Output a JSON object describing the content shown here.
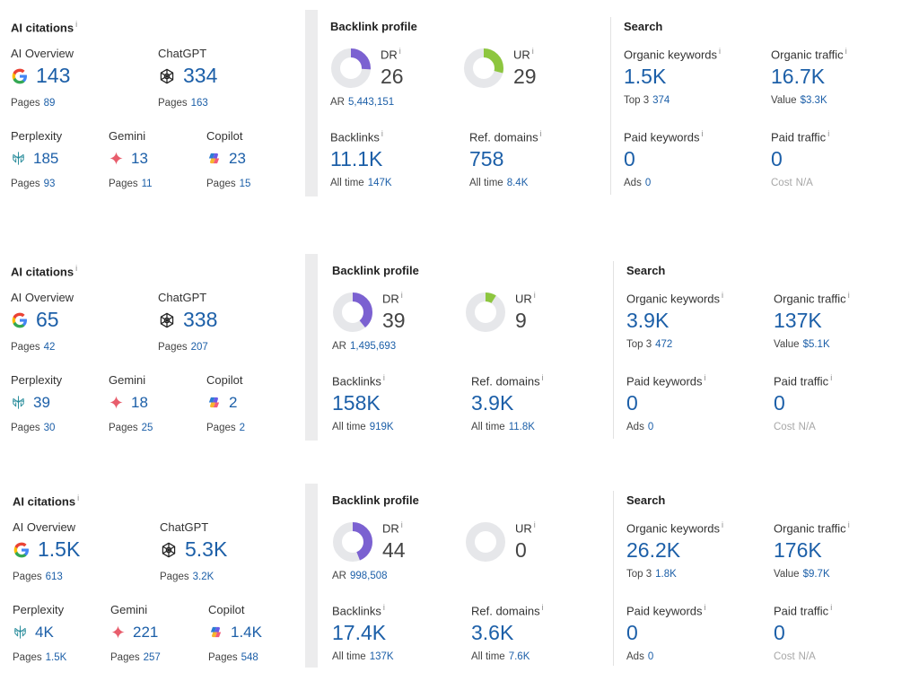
{
  "labels": {
    "ai_citations": "AI citations",
    "ai_overview": "AI Overview",
    "chatgpt": "ChatGPT",
    "perplexity": "Perplexity",
    "gemini": "Gemini",
    "copilot": "Copilot",
    "pages": "Pages",
    "backlink_profile": "Backlink profile",
    "dr": "DR",
    "ur": "UR",
    "ar": "AR",
    "backlinks": "Backlinks",
    "ref_domains": "Ref. domains",
    "all_time": "All time",
    "search": "Search",
    "organic_keywords": "Organic keywords",
    "organic_traffic": "Organic traffic",
    "top3": "Top 3",
    "value": "Value",
    "paid_keywords": "Paid keywords",
    "paid_traffic": "Paid traffic",
    "ads": "Ads",
    "cost": "Cost",
    "info_mark": "i"
  },
  "colors": {
    "accent_blue": "#1c5fa8",
    "dr_purple": "#7b61d1",
    "ur_green": "#8dc63f",
    "donut_track": "#e6e7ea",
    "gemini_red": "#e85d6c",
    "perplexity_teal": "#2a8d9c"
  },
  "icons": {
    "ai_overview": "google-icon",
    "chatgpt": "chatgpt-icon",
    "perplexity": "perplexity-icon",
    "gemini": "gemini-icon",
    "copilot": "copilot-icon",
    "info": "info-icon"
  },
  "rows": [
    {
      "ai": {
        "ai_overview": "143",
        "ai_overview_pages": "89",
        "chatgpt": "334",
        "chatgpt_pages": "163",
        "perplexity": "185",
        "perplexity_pages": "93",
        "gemini": "13",
        "gemini_pages": "11",
        "copilot": "23",
        "copilot_pages": "15"
      },
      "backlink": {
        "dr": "26",
        "dr_fraction": 0.26,
        "ur": "29",
        "ur_fraction": 0.29,
        "ar": "5,443,151",
        "backlinks": "11.1K",
        "backlinks_all_time": "147K",
        "ref_domains": "758",
        "ref_domains_all_time": "8.4K"
      },
      "search": {
        "organic_keywords": "1.5K",
        "top3": "374",
        "organic_traffic": "16.7K",
        "value": "$3.3K",
        "paid_keywords": "0",
        "ads": "0",
        "paid_traffic": "0",
        "cost": "N/A"
      }
    },
    {
      "ai": {
        "ai_overview": "65",
        "ai_overview_pages": "42",
        "chatgpt": "338",
        "chatgpt_pages": "207",
        "perplexity": "39",
        "perplexity_pages": "30",
        "gemini": "18",
        "gemini_pages": "25",
        "copilot": "2",
        "copilot_pages": "2"
      },
      "backlink": {
        "dr": "39",
        "dr_fraction": 0.39,
        "ur": "9",
        "ur_fraction": 0.09,
        "ar": "1,495,693",
        "backlinks": "158K",
        "backlinks_all_time": "919K",
        "ref_domains": "3.9K",
        "ref_domains_all_time": "11.8K"
      },
      "search": {
        "organic_keywords": "3.9K",
        "top3": "472",
        "organic_traffic": "137K",
        "value": "$5.1K",
        "paid_keywords": "0",
        "ads": "0",
        "paid_traffic": "0",
        "cost": "N/A"
      }
    },
    {
      "ai": {
        "ai_overview": "1.5K",
        "ai_overview_pages": "613",
        "chatgpt": "5.3K",
        "chatgpt_pages": "3.2K",
        "perplexity": "4K",
        "perplexity_pages": "1.5K",
        "gemini": "221",
        "gemini_pages": "257",
        "copilot": "1.4K",
        "copilot_pages": "548"
      },
      "backlink": {
        "dr": "44",
        "dr_fraction": 0.44,
        "ur": "0",
        "ur_fraction": 0,
        "ar": "998,508",
        "backlinks": "17.4K",
        "backlinks_all_time": "137K",
        "ref_domains": "3.6K",
        "ref_domains_all_time": "7.6K"
      },
      "search": {
        "organic_keywords": "26.2K",
        "top3": "1.8K",
        "organic_traffic": "176K",
        "value": "$9.7K",
        "paid_keywords": "0",
        "ads": "0",
        "paid_traffic": "0",
        "cost": "N/A"
      }
    }
  ]
}
